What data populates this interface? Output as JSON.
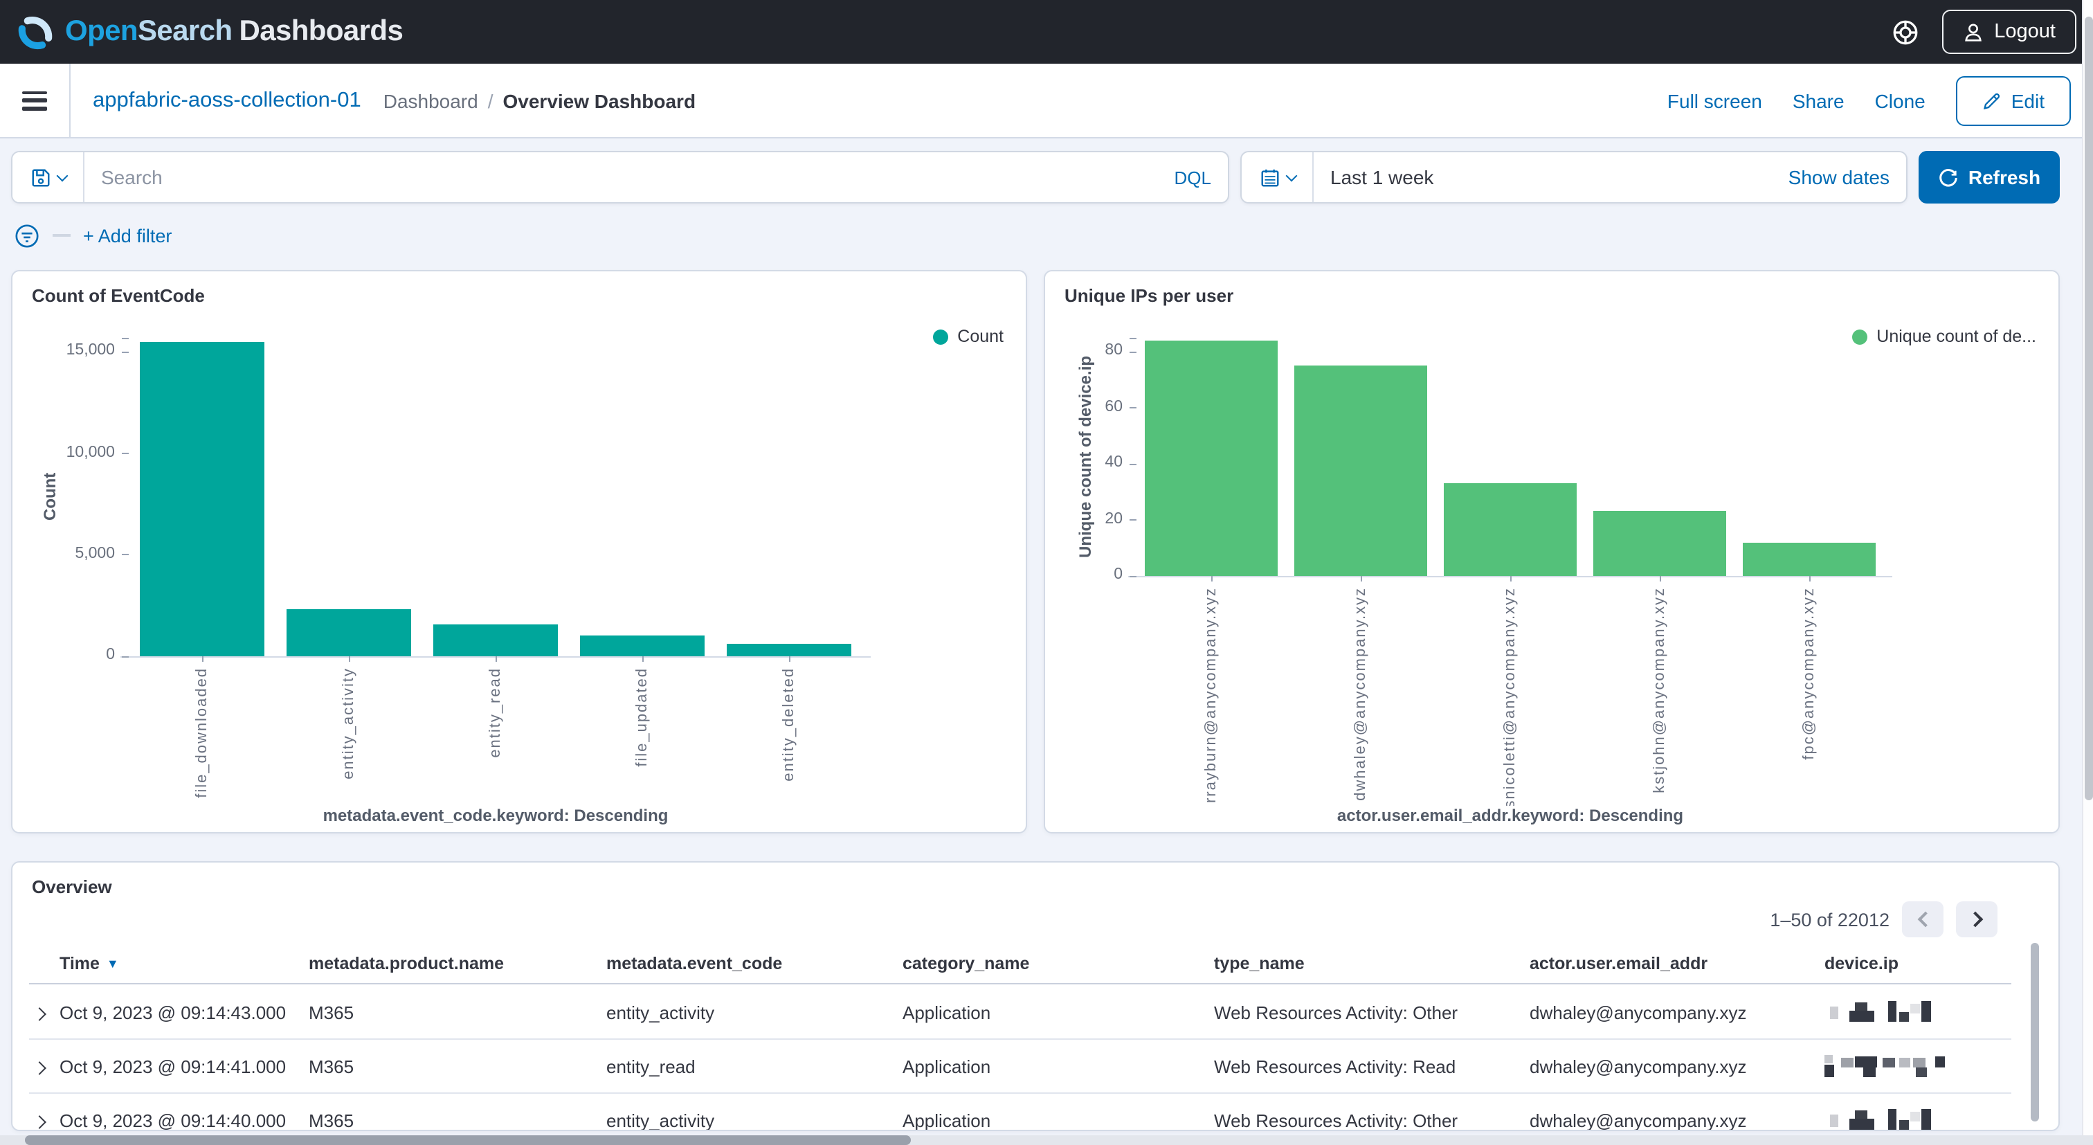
{
  "header": {
    "logo": {
      "open": "Open",
      "search": "Search",
      "dashboards": "Dashboards"
    },
    "logout_label": "Logout"
  },
  "nav": {
    "collection_name": "appfabric-aoss-collection-01",
    "breadcrumb_parent": "Dashboard",
    "breadcrumb_separator": "/",
    "breadcrumb_current": "Overview Dashboard",
    "actions": {
      "full_screen": "Full screen",
      "share": "Share",
      "clone": "Clone",
      "edit": "Edit"
    }
  },
  "query_bar": {
    "search_placeholder": "Search",
    "language_label": "DQL",
    "time_value": "Last 1 week",
    "show_dates_label": "Show dates",
    "refresh_label": "Refresh"
  },
  "filter_bar": {
    "add_filter_label": "+ Add filter"
  },
  "chart_data": [
    {
      "type": "bar",
      "title": "Count of EventCode",
      "legend": [
        "Count"
      ],
      "legend_position": "top-right",
      "bar_color": "#00A69B",
      "categories": [
        "file_downloaded",
        "entity_activity",
        "entity_read",
        "file_updated",
        "entity_deleted"
      ],
      "values": [
        15500,
        2300,
        1550,
        1000,
        600
      ],
      "xlabel": "metadata.event_code.keyword: Descending",
      "ylabel": "Count",
      "ylim": [
        0,
        15700
      ],
      "yticks": [
        0,
        5000,
        10000,
        15000
      ],
      "ytick_labels": [
        "0",
        "5,000",
        "10,000",
        "15,000"
      ],
      "grid": false
    },
    {
      "type": "bar",
      "title": "Unique IPs per user",
      "legend": [
        "Unique count of de..."
      ],
      "legend_position": "top-right",
      "bar_color": "#54C17A",
      "categories": [
        "rrayburn@anycompany.xyz",
        "dwhaley@anycompany.xyz",
        "snicoletti@anycompany.xyz",
        "kstjohn@anycompany.xyz",
        "fpc@anycompany.xyz"
      ],
      "values": [
        84,
        75,
        33,
        23,
        12
      ],
      "xlabel": "actor.user.email_addr.keyword: Descending",
      "ylabel": "Unique count of device.ip",
      "ylim": [
        0,
        85
      ],
      "yticks": [
        0,
        20,
        40,
        60,
        80
      ],
      "ytick_labels": [
        "0",
        "20",
        "40",
        "60",
        "80"
      ],
      "grid": false
    }
  ],
  "table": {
    "title": "Overview",
    "pagination": {
      "range_label": "1–50 of 22012"
    },
    "columns": [
      "Time",
      "metadata.product.name",
      "metadata.event_code",
      "category_name",
      "type_name",
      "actor.user.email_addr",
      "device.ip"
    ],
    "sorted_column": "Time",
    "sort_direction": "desc",
    "rows": [
      {
        "time": "Oct 9, 2023 @ 09:14:43.000",
        "product": "M365",
        "event_code": "entity_activity",
        "category": "Application",
        "type": "Web Resources Activity: Other",
        "email": "dwhaley@anycompany.xyz",
        "device_ip_redacted": true,
        "mask": "short"
      },
      {
        "time": "Oct 9, 2023 @ 09:14:41.000",
        "product": "M365",
        "event_code": "entity_read",
        "category": "Application",
        "type": "Web Resources Activity: Read",
        "email": "dwhaley@anycompany.xyz",
        "device_ip_redacted": true,
        "mask": "long"
      },
      {
        "time": "Oct 9, 2023 @ 09:14:40.000",
        "product": "M365",
        "event_code": "entity_activity",
        "category": "Application",
        "type": "Web Resources Activity: Other",
        "email": "dwhaley@anycompany.xyz",
        "device_ip_redacted": true,
        "mask": "short"
      }
    ]
  },
  "colors": {
    "accent_blue": "#006BB4",
    "teal": "#00A69B",
    "green": "#54C17A",
    "header_bg": "#22252C",
    "text_dark": "#343741",
    "axis_text": "#69707D"
  }
}
